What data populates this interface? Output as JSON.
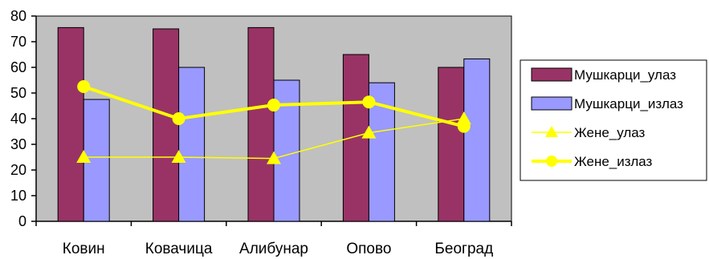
{
  "chart_data": {
    "type": "bar",
    "categories": [
      "Ковин",
      "Ковачица",
      "Алибунар",
      "Опово",
      "Београд"
    ],
    "ylim": [
      0,
      80
    ],
    "yticks": [
      0,
      10,
      20,
      30,
      40,
      50,
      60,
      70,
      80
    ],
    "grid": false,
    "plot_background": "#c0c0c0",
    "legend_position": "right",
    "series": [
      {
        "name": "Мушкарци_улаз",
        "kind": "bar",
        "color": "#993366",
        "values": [
          75.5,
          75,
          75.5,
          65,
          60
        ]
      },
      {
        "name": "Мушкарци_излаз",
        "kind": "bar",
        "color": "#9999ff",
        "values": [
          47.5,
          60,
          55,
          54,
          63.3
        ]
      },
      {
        "name": "Жене_улаз",
        "kind": "line",
        "marker": "triangle",
        "color": "#ffff00",
        "values": [
          25,
          25,
          24.5,
          34.5,
          40
        ]
      },
      {
        "name": "Жене_излаз",
        "kind": "line",
        "marker": "circle",
        "color": "#ffff00",
        "values": [
          52.5,
          40,
          45.3,
          46.5,
          37
        ]
      }
    ]
  }
}
